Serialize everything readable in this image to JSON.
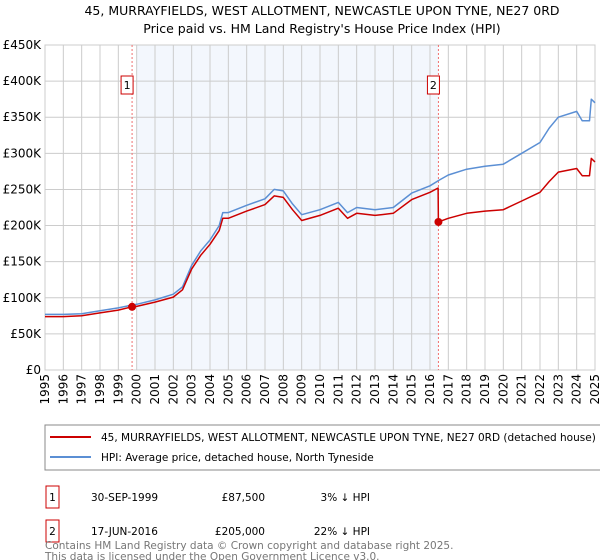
{
  "chart_data": {
    "type": "line",
    "title": "45, MURRAYFIELDS, WEST ALLOTMENT, NEWCASTLE UPON TYNE, NE27 0RD",
    "subtitle": "Price paid vs. HM Land Registry's House Price Index (HPI)",
    "xlim": [
      1995,
      2025
    ],
    "ylim": [
      0,
      450000
    ],
    "grid": true,
    "x_ticks": [
      "1995",
      "1996",
      "1997",
      "1998",
      "1999",
      "2000",
      "2001",
      "2002",
      "2003",
      "2004",
      "2005",
      "2006",
      "2007",
      "2008",
      "2009",
      "2010",
      "2011",
      "2012",
      "2013",
      "2014",
      "2015",
      "2016",
      "2017",
      "2018",
      "2019",
      "2020",
      "2021",
      "2022",
      "2023",
      "2024",
      "2025"
    ],
    "y_ticks": [
      {
        "value": 0,
        "label": "£0"
      },
      {
        "value": 50000,
        "label": "£50K"
      },
      {
        "value": 100000,
        "label": "£100K"
      },
      {
        "value": 150000,
        "label": "£150K"
      },
      {
        "value": 200000,
        "label": "£200K"
      },
      {
        "value": 250000,
        "label": "£250K"
      },
      {
        "value": 300000,
        "label": "£300K"
      },
      {
        "value": 350000,
        "label": "£350K"
      },
      {
        "value": 400000,
        "label": "£400K"
      },
      {
        "value": 450000,
        "label": "£450K"
      }
    ],
    "series": [
      {
        "name": "45, MURRAYFIELDS, WEST ALLOTMENT, NEWCASTLE UPON TYNE, NE27 0RD (detached house)",
        "color": "#cc0000",
        "x": [
          1995,
          1996,
          1997,
          1998,
          1999,
          1999.75,
          2000,
          2001,
          2002,
          2002.5,
          2003,
          2003.5,
          2004,
          2004.5,
          2004.7,
          2005,
          2006,
          2007,
          2007.5,
          2008,
          2008.5,
          2009,
          2010,
          2011,
          2011.5,
          2012,
          2013,
          2014,
          2015,
          2016,
          2016.44,
          2016.46,
          2017,
          2018,
          2019,
          2020,
          2021,
          2022,
          2022.5,
          2023,
          2024,
          2024.3,
          2024.7,
          2024.8,
          2025
        ],
        "y": [
          74000,
          74000,
          75000,
          79000,
          83000,
          87500,
          88000,
          94000,
          101000,
          111000,
          140000,
          159000,
          174000,
          193000,
          210000,
          210000,
          220000,
          229000,
          241000,
          239000,
          222000,
          207000,
          214000,
          224000,
          210000,
          217000,
          214000,
          217000,
          236000,
          246000,
          252000,
          205000,
          210000,
          217000,
          220000,
          222000,
          234000,
          246000,
          261000,
          274000,
          279000,
          269000,
          269000,
          293000,
          288000
        ]
      },
      {
        "name": "HPI: Average price, detached house, North Tyneside",
        "color": "#5b8fd4",
        "x": [
          1995,
          1996,
          1997,
          1998,
          1999,
          1999.75,
          2000,
          2001,
          2002,
          2002.5,
          2003,
          2003.5,
          2004,
          2004.5,
          2004.7,
          2005,
          2006,
          2007,
          2007.5,
          2008,
          2008.5,
          2009,
          2010,
          2011,
          2011.5,
          2012,
          2013,
          2014,
          2015,
          2016,
          2016.5,
          2017,
          2018,
          2019,
          2020,
          2021,
          2022,
          2022.5,
          2023,
          2024,
          2024.3,
          2024.7,
          2024.8,
          2025
        ],
        "y": [
          77000,
          77000,
          78000,
          82000,
          86000,
          90000,
          91000,
          97000,
          105000,
          115000,
          145000,
          165000,
          180000,
          200000,
          218000,
          218000,
          228000,
          237000,
          250000,
          248000,
          230000,
          215000,
          222000,
          232000,
          218000,
          225000,
          222000,
          225000,
          245000,
          255000,
          263000,
          270000,
          278000,
          282000,
          285000,
          300000,
          315000,
          335000,
          350000,
          358000,
          345000,
          345000,
          375000,
          370000
        ]
      }
    ],
    "sales": [
      {
        "label": "1",
        "x": 1999.75,
        "y": 87500
      },
      {
        "label": "2",
        "x": 2016.46,
        "y": 205000
      }
    ]
  },
  "legend": {
    "property": "45, MURRAYFIELDS, WEST ALLOTMENT, NEWCASTLE UPON TYNE, NE27 0RD (detached house)",
    "hpi": "HPI: Average price, detached house, North Tyneside"
  },
  "transactions": [
    {
      "num": "1",
      "date": "30-SEP-1999",
      "price": "£87,500",
      "hpi": "3% ↓ HPI"
    },
    {
      "num": "2",
      "date": "17-JUN-2016",
      "price": "£205,000",
      "hpi": "22% ↓ HPI"
    }
  ],
  "footer": {
    "line1": "Contains HM Land Registry data © Crown copyright and database right 2025.",
    "line2": "This data is licensed under the Open Government Licence v3.0."
  }
}
